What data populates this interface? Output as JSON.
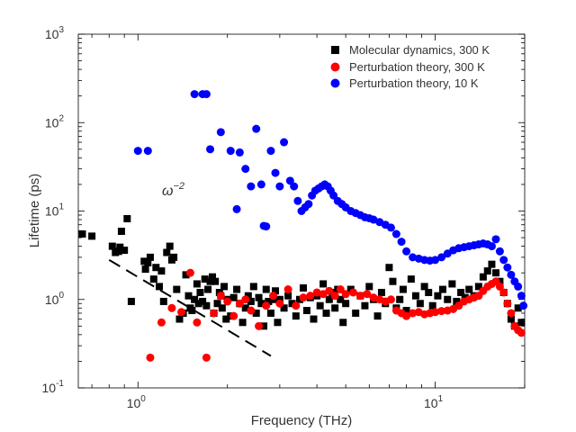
{
  "chart_data": {
    "type": "scatter",
    "xscale": "log",
    "yscale": "log",
    "xlim": [
      0.63,
      20
    ],
    "ylim": [
      0.1,
      1000
    ],
    "xlabel": "Frequency (THz)",
    "ylabel": "Lifetime (ps)",
    "x_ticks": [
      {
        "value": 1,
        "mantissa": "10",
        "exp": "0"
      },
      {
        "value": 10,
        "mantissa": "10",
        "exp": "1"
      }
    ],
    "y_ticks": [
      {
        "value": 0.1,
        "mantissa": "10",
        "exp": "-1"
      },
      {
        "value": 1,
        "mantissa": "10",
        "exp": "0"
      },
      {
        "value": 10,
        "mantissa": "10",
        "exp": "1"
      },
      {
        "value": 100,
        "mantissa": "10",
        "exp": "2"
      },
      {
        "value": 1000,
        "mantissa": "10",
        "exp": "3"
      }
    ],
    "legend_position": "top-right",
    "grid": false,
    "annotation": {
      "base": "ω",
      "exp": "−2",
      "line_x": [
        0.8,
        2.8
      ],
      "line_y": [
        2.8,
        0.23
      ]
    },
    "series": [
      {
        "name": "Molecular dynamics, 300 K",
        "marker": "square",
        "color": "#000000",
        "points": [
          [
            0.65,
            5.5
          ],
          [
            0.7,
            5.2
          ],
          [
            0.82,
            4.0
          ],
          [
            0.84,
            3.4
          ],
          [
            0.86,
            3.5
          ],
          [
            0.87,
            3.9
          ],
          [
            0.88,
            5.9
          ],
          [
            0.9,
            3.6
          ],
          [
            0.92,
            8.2
          ],
          [
            0.95,
            0.95
          ],
          [
            1.05,
            2.7
          ],
          [
            1.06,
            2.2
          ],
          [
            1.08,
            2.6
          ],
          [
            1.1,
            3.0
          ],
          [
            1.13,
            1.7
          ],
          [
            1.15,
            2.3
          ],
          [
            1.18,
            1.4
          ],
          [
            1.2,
            2.1
          ],
          [
            1.22,
            0.95
          ],
          [
            1.25,
            3.4
          ],
          [
            1.28,
            4.0
          ],
          [
            1.3,
            2.8
          ],
          [
            1.32,
            3.0
          ],
          [
            1.35,
            1.3
          ],
          [
            1.38,
            0.6
          ],
          [
            1.42,
            0.7
          ],
          [
            1.45,
            1.9
          ],
          [
            1.48,
            1.1
          ],
          [
            1.5,
            0.8
          ],
          [
            1.52,
            0.75
          ],
          [
            1.55,
            1.0
          ],
          [
            1.58,
            1.5
          ],
          [
            1.6,
            0.9
          ],
          [
            1.62,
            1.2
          ],
          [
            1.65,
            0.95
          ],
          [
            1.68,
            1.7
          ],
          [
            1.7,
            0.85
          ],
          [
            1.72,
            1.3
          ],
          [
            1.75,
            1.6
          ],
          [
            1.78,
            1.8
          ],
          [
            1.8,
            0.7
          ],
          [
            1.82,
            1.6
          ],
          [
            1.85,
            0.9
          ],
          [
            1.88,
            1.2
          ],
          [
            1.9,
            1.1
          ],
          [
            1.92,
            0.8
          ],
          [
            1.95,
            1.4
          ],
          [
            1.98,
            0.6
          ],
          [
            2.0,
            1.0
          ],
          [
            2.05,
            0.65
          ],
          [
            2.1,
            1.05
          ],
          [
            2.15,
            1.3
          ],
          [
            2.2,
            0.9
          ],
          [
            2.25,
            0.55
          ],
          [
            2.3,
            0.8
          ],
          [
            2.35,
            1.1
          ],
          [
            2.4,
            0.95
          ],
          [
            2.45,
            1.4
          ],
          [
            2.5,
            0.7
          ],
          [
            2.55,
            1.05
          ],
          [
            2.6,
            0.9
          ],
          [
            2.65,
            0.5
          ],
          [
            2.7,
            1.3
          ],
          [
            2.75,
            0.95
          ],
          [
            2.8,
            0.7
          ],
          [
            2.85,
            1.0
          ],
          [
            2.9,
            1.25
          ],
          [
            2.95,
            0.55
          ],
          [
            3.0,
            1.0
          ],
          [
            3.1,
            0.8
          ],
          [
            3.2,
            1.1
          ],
          [
            3.3,
            0.9
          ],
          [
            3.4,
            0.65
          ],
          [
            3.5,
            1.0
          ],
          [
            3.6,
            1.35
          ],
          [
            3.7,
            0.75
          ],
          [
            3.8,
            1.05
          ],
          [
            3.9,
            0.6
          ],
          [
            4.0,
            1.1
          ],
          [
            4.1,
            0.85
          ],
          [
            4.2,
            1.5
          ],
          [
            4.3,
            0.7
          ],
          [
            4.4,
            1.0
          ],
          [
            4.5,
            1.2
          ],
          [
            4.6,
            0.8
          ],
          [
            4.7,
            1.3
          ],
          [
            4.8,
            1.0
          ],
          [
            4.9,
            0.55
          ],
          [
            5.0,
            0.9
          ],
          [
            5.2,
            1.3
          ],
          [
            5.4,
            0.7
          ],
          [
            5.6,
            1.1
          ],
          [
            5.8,
            0.85
          ],
          [
            6.0,
            1.4
          ],
          [
            6.2,
            1.0
          ],
          [
            6.4,
            0.65
          ],
          [
            6.6,
            1.2
          ],
          [
            6.8,
            0.9
          ],
          [
            7.0,
            2.3
          ],
          [
            7.2,
            1.6
          ],
          [
            7.4,
            0.8
          ],
          [
            7.6,
            1.0
          ],
          [
            7.8,
            1.3
          ],
          [
            8.0,
            0.75
          ],
          [
            8.3,
            1.7
          ],
          [
            8.6,
            1.1
          ],
          [
            8.9,
            0.9
          ],
          [
            9.2,
            1.4
          ],
          [
            9.5,
            1.2
          ],
          [
            9.8,
            0.85
          ],
          [
            10.2,
            1.1
          ],
          [
            10.6,
            1.3
          ],
          [
            11.0,
            1.0
          ],
          [
            11.4,
            1.5
          ],
          [
            11.8,
            0.95
          ],
          [
            12.2,
            1.2
          ],
          [
            12.6,
            1.05
          ],
          [
            13.0,
            1.3
          ],
          [
            13.5,
            1.1
          ],
          [
            14.0,
            1.4
          ],
          [
            14.5,
            1.8
          ],
          [
            15.0,
            2.1
          ],
          [
            15.5,
            2.5
          ],
          [
            16.0,
            2.0
          ],
          [
            16.5,
            1.6
          ],
          [
            17.0,
            1.2
          ],
          [
            17.5,
            0.9
          ],
          [
            18.0,
            0.6
          ],
          [
            18.5,
            0.5
          ],
          [
            19.0,
            0.8
          ],
          [
            19.5,
            0.55
          ]
        ]
      },
      {
        "name": "Perturbation theory, 300 K",
        "marker": "circle",
        "color": "#ff0000",
        "points": [
          [
            1.1,
            0.22
          ],
          [
            1.2,
            0.55
          ],
          [
            1.3,
            0.8
          ],
          [
            1.4,
            0.72
          ],
          [
            1.5,
            2.0
          ],
          [
            1.58,
            0.55
          ],
          [
            1.7,
            0.22
          ],
          [
            1.8,
            0.7
          ],
          [
            1.9,
            1.1
          ],
          [
            2.0,
            0.95
          ],
          [
            2.1,
            0.65
          ],
          [
            2.2,
            0.9
          ],
          [
            2.3,
            1.0
          ],
          [
            2.4,
            0.75
          ],
          [
            2.55,
            0.5
          ],
          [
            2.7,
            0.85
          ],
          [
            2.85,
            1.1
          ],
          [
            3.0,
            0.9
          ],
          [
            3.2,
            1.3
          ],
          [
            3.4,
            0.85
          ],
          [
            3.6,
            1.05
          ],
          [
            3.8,
            1.1
          ],
          [
            4.0,
            1.2
          ],
          [
            4.2,
            1.15
          ],
          [
            4.4,
            1.25
          ],
          [
            4.6,
            1.1
          ],
          [
            4.8,
            1.3
          ],
          [
            5.0,
            1.15
          ],
          [
            5.3,
            1.2
          ],
          [
            5.6,
            1.1
          ],
          [
            5.9,
            1.15
          ],
          [
            6.2,
            1.05
          ],
          [
            6.5,
            1.0
          ],
          [
            6.8,
            0.95
          ],
          [
            7.1,
            1.0
          ],
          [
            7.4,
            0.75
          ],
          [
            7.7,
            0.7
          ],
          [
            8.0,
            0.65
          ],
          [
            8.4,
            0.7
          ],
          [
            8.8,
            0.72
          ],
          [
            9.2,
            0.68
          ],
          [
            9.6,
            0.7
          ],
          [
            10.0,
            0.72
          ],
          [
            10.5,
            0.74
          ],
          [
            11.0,
            0.75
          ],
          [
            11.5,
            0.78
          ],
          [
            12.0,
            0.85
          ],
          [
            12.5,
            0.95
          ],
          [
            13.0,
            1.0
          ],
          [
            13.5,
            1.05
          ],
          [
            14.0,
            1.1
          ],
          [
            14.5,
            1.25
          ],
          [
            15.0,
            1.4
          ],
          [
            15.5,
            1.5
          ],
          [
            16.0,
            1.6
          ],
          [
            16.5,
            1.4
          ],
          [
            17.0,
            1.2
          ],
          [
            17.5,
            0.9
          ],
          [
            18.0,
            0.7
          ],
          [
            18.5,
            0.5
          ],
          [
            19.0,
            0.45
          ],
          [
            19.5,
            0.42
          ]
        ]
      },
      {
        "name": "Perturbation theory, 10 K",
        "marker": "circle",
        "color": "#0000ff",
        "points": [
          [
            1.0,
            48
          ],
          [
            1.08,
            48
          ],
          [
            1.55,
            210
          ],
          [
            1.65,
            210
          ],
          [
            1.7,
            210
          ],
          [
            1.75,
            50
          ],
          [
            1.9,
            78
          ],
          [
            2.05,
            48
          ],
          [
            2.15,
            10.5
          ],
          [
            2.2,
            46
          ],
          [
            2.3,
            30
          ],
          [
            2.4,
            19
          ],
          [
            2.5,
            85
          ],
          [
            2.6,
            20
          ],
          [
            2.65,
            6.8
          ],
          [
            2.7,
            6.7
          ],
          [
            2.8,
            48
          ],
          [
            2.9,
            27
          ],
          [
            3.0,
            19
          ],
          [
            3.1,
            60
          ],
          [
            3.25,
            22
          ],
          [
            3.35,
            19
          ],
          [
            3.45,
            13
          ],
          [
            3.55,
            10
          ],
          [
            3.65,
            11
          ],
          [
            3.75,
            12
          ],
          [
            3.85,
            15
          ],
          [
            3.95,
            17
          ],
          [
            4.05,
            18
          ],
          [
            4.15,
            19
          ],
          [
            4.25,
            20
          ],
          [
            4.35,
            19
          ],
          [
            4.45,
            17
          ],
          [
            4.55,
            15
          ],
          [
            4.7,
            13
          ],
          [
            4.85,
            12
          ],
          [
            5.0,
            11
          ],
          [
            5.2,
            10
          ],
          [
            5.4,
            9.5
          ],
          [
            5.6,
            9.0
          ],
          [
            5.8,
            8.5
          ],
          [
            6.0,
            8.3
          ],
          [
            6.2,
            8.0
          ],
          [
            6.5,
            7.5
          ],
          [
            6.8,
            7.0
          ],
          [
            7.1,
            6.5
          ],
          [
            7.4,
            5.5
          ],
          [
            7.7,
            4.5
          ],
          [
            8.0,
            3.5
          ],
          [
            8.4,
            3.0
          ],
          [
            8.8,
            2.9
          ],
          [
            9.2,
            2.8
          ],
          [
            9.6,
            2.75
          ],
          [
            10.0,
            2.8
          ],
          [
            10.5,
            3.0
          ],
          [
            11.0,
            3.3
          ],
          [
            11.5,
            3.6
          ],
          [
            12.0,
            3.8
          ],
          [
            12.5,
            3.9
          ],
          [
            13.0,
            4.0
          ],
          [
            13.5,
            4.1
          ],
          [
            14.0,
            4.2
          ],
          [
            14.5,
            4.3
          ],
          [
            15.0,
            4.2
          ],
          [
            15.5,
            4.0
          ],
          [
            16.0,
            4.8
          ],
          [
            16.5,
            3.5
          ],
          [
            17.0,
            2.8
          ],
          [
            17.5,
            2.3
          ],
          [
            18.0,
            1.9
          ],
          [
            18.5,
            1.6
          ],
          [
            19.0,
            1.4
          ],
          [
            19.5,
            1.1
          ],
          [
            19.8,
            0.85
          ]
        ]
      }
    ]
  }
}
